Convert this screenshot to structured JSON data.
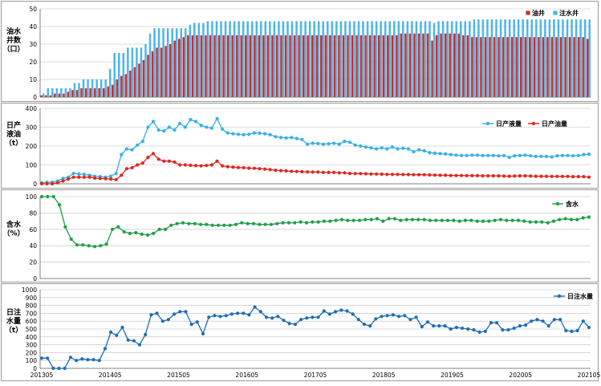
{
  "chart_data": [
    {
      "type": "bar",
      "ylabel": [
        "油水",
        "井数",
        "（口）"
      ],
      "ylim": [
        0,
        50
      ],
      "yticks": [
        "0",
        "10",
        "20",
        "30",
        "40",
        "50"
      ],
      "legend_position": "top-right",
      "colors": {
        "oil": "#d42a2a",
        "water": "#4fb5e4"
      },
      "series": [
        {
          "name": "油井",
          "values": [
            1,
            1,
            1,
            2,
            2,
            2,
            3,
            4,
            4,
            5,
            5,
            5,
            5,
            5,
            5,
            6,
            7,
            10,
            12,
            13,
            15,
            17,
            19,
            21,
            24,
            26,
            28,
            28,
            29,
            30,
            32,
            33,
            34,
            35,
            35,
            35,
            35,
            35,
            35,
            35,
            35,
            35,
            35,
            35,
            35,
            35,
            35,
            35,
            35,
            35,
            35,
            35,
            35,
            35,
            35,
            35,
            35,
            35,
            35,
            35,
            35,
            35,
            35,
            35,
            35,
            35,
            35,
            35,
            35,
            35,
            35,
            35,
            35,
            35,
            35,
            35,
            35,
            35,
            35,
            35,
            35,
            36,
            36,
            36,
            36,
            36,
            36,
            36,
            32,
            35,
            36,
            36,
            36,
            36,
            36,
            35,
            35,
            34,
            34,
            34,
            34,
            34,
            34,
            34,
            34,
            34,
            34,
            34,
            34,
            34,
            34,
            34,
            34,
            34,
            34,
            34,
            34,
            34,
            34,
            34,
            34,
            34,
            34,
            33
          ]
        },
        {
          "name": "注水井",
          "values": [
            2,
            5,
            5,
            5,
            5,
            5,
            5,
            8,
            8,
            10,
            10,
            10,
            10,
            10,
            10,
            16,
            25,
            25,
            25,
            28,
            28,
            28,
            28,
            30,
            36,
            39,
            39,
            39,
            39,
            39,
            39,
            39,
            39,
            41,
            42,
            42,
            42,
            43,
            43,
            43,
            43,
            43,
            43,
            43,
            43,
            43,
            43,
            43,
            43,
            43,
            43,
            43,
            43,
            43,
            43,
            43,
            43,
            43,
            43,
            43,
            43,
            43,
            43,
            43,
            43,
            43,
            43,
            43,
            43,
            43,
            43,
            43,
            43,
            43,
            43,
            43,
            43,
            43,
            43,
            43,
            43,
            43,
            43,
            43,
            43,
            43,
            43,
            43,
            42,
            43,
            43,
            43,
            43,
            43,
            43,
            43,
            43,
            44,
            44,
            44,
            44,
            44,
            44,
            44,
            44,
            44,
            44,
            44,
            44,
            44,
            44,
            44,
            44,
            44,
            44,
            44,
            44,
            44,
            44,
            44,
            44,
            44,
            44,
            44
          ]
        }
      ]
    },
    {
      "type": "line",
      "ylabel": [
        "日产",
        "液油",
        "（t）"
      ],
      "ylim": [
        0,
        400
      ],
      "yticks": [
        "0",
        "100",
        "200",
        "300",
        "400"
      ],
      "legend_position": "top-right",
      "series": [
        {
          "name": "日产液量",
          "color": "#35b0e4",
          "values": [
            5,
            8,
            8,
            15,
            28,
            35,
            55,
            52,
            50,
            45,
            40,
            38,
            35,
            40,
            55,
            155,
            185,
            180,
            205,
            225,
            300,
            330,
            285,
            280,
            300,
            285,
            320,
            300,
            340,
            330,
            310,
            300,
            295,
            345,
            290,
            270,
            265,
            262,
            260,
            262,
            270,
            268,
            265,
            260,
            250,
            245,
            243,
            245,
            240,
            235,
            210,
            215,
            213,
            210,
            212,
            215,
            210,
            225,
            220,
            205,
            200,
            195,
            190,
            185,
            190,
            185,
            195,
            185,
            188,
            185,
            170,
            180,
            175,
            165,
            162,
            160,
            158,
            155,
            152,
            150,
            150,
            152,
            152,
            150,
            150,
            150,
            148,
            150,
            140,
            148,
            150,
            152,
            148,
            145,
            145,
            145,
            142,
            148,
            150,
            150,
            148,
            150,
            155,
            157
          ]
        },
        {
          "name": "日产油量",
          "color": "#e0261e",
          "values": [
            0,
            0,
            0,
            5,
            15,
            25,
            35,
            35,
            35,
            35,
            30,
            28,
            27,
            25,
            22,
            45,
            80,
            85,
            100,
            110,
            140,
            160,
            130,
            120,
            120,
            115,
            100,
            100,
            98,
            96,
            95,
            97,
            100,
            120,
            95,
            90,
            88,
            86,
            85,
            83,
            82,
            80,
            78,
            75,
            72,
            70,
            68,
            66,
            65,
            64,
            63,
            62,
            62,
            60,
            60,
            60,
            58,
            58,
            55,
            54,
            54,
            53,
            52,
            52,
            51,
            50,
            50,
            50,
            49,
            49,
            48,
            48,
            48,
            47,
            46,
            45,
            45,
            44,
            44,
            44,
            43,
            43,
            43,
            42,
            42,
            42,
            42,
            41,
            40,
            41,
            42,
            42,
            41,
            40,
            40,
            40,
            39,
            39,
            39,
            39,
            38,
            38,
            38,
            35
          ]
        }
      ]
    },
    {
      "type": "line",
      "ylabel": [
        "含水",
        "（%）"
      ],
      "ylim": [
        0,
        100
      ],
      "yticks": [
        "0",
        "20",
        "40",
        "60",
        "80",
        "100"
      ],
      "legend_position": "top-right",
      "series": [
        {
          "name": "含水",
          "color": "#1f9e46",
          "values": [
            100,
            100,
            100,
            90,
            63,
            48,
            41,
            41,
            40,
            39,
            40,
            42,
            60,
            63,
            57,
            55,
            56,
            54,
            53,
            55,
            60,
            60,
            65,
            67,
            68,
            67,
            67,
            66,
            66,
            65,
            65,
            65,
            65,
            66,
            68,
            67,
            67,
            66,
            66,
            66,
            67,
            68,
            68,
            68,
            69,
            68,
            69,
            69,
            70,
            70,
            71,
            72,
            71,
            71,
            71,
            72,
            72,
            73,
            70,
            73,
            73,
            71,
            72,
            72,
            72,
            72,
            71,
            71,
            71,
            71,
            71,
            70,
            71,
            71,
            70,
            70,
            70,
            71,
            72,
            71,
            71,
            71,
            70,
            69,
            69,
            69,
            68,
            70,
            72,
            73,
            72,
            72,
            74,
            75
          ]
        }
      ]
    },
    {
      "type": "line",
      "ylabel": [
        "日注",
        "水量",
        "（t）"
      ],
      "ylim": [
        0,
        1000
      ],
      "yticks": [
        "0",
        "100",
        "200",
        "300",
        "400",
        "500",
        "600",
        "700",
        "800",
        "900",
        "1000"
      ],
      "legend_position": "top-right",
      "xticks": [
        "201305",
        "201405",
        "201505",
        "201605",
        "201705",
        "201805",
        "201905",
        "202005",
        "202105"
      ],
      "series": [
        {
          "name": "日注水量",
          "color": "#1f6db5",
          "values": [
            130,
            130,
            0,
            0,
            0,
            140,
            100,
            120,
            110,
            110,
            100,
            250,
            460,
            420,
            520,
            360,
            350,
            300,
            430,
            680,
            700,
            600,
            620,
            690,
            720,
            720,
            560,
            590,
            440,
            650,
            670,
            660,
            670,
            690,
            700,
            700,
            680,
            780,
            720,
            650,
            640,
            660,
            610,
            570,
            560,
            620,
            640,
            650,
            650,
            730,
            690,
            720,
            740,
            730,
            690,
            620,
            560,
            540,
            630,
            660,
            670,
            680,
            660,
            670,
            620,
            650,
            530,
            590,
            540,
            540,
            540,
            500,
            520,
            510,
            500,
            490,
            460,
            470,
            580,
            580,
            490,
            490,
            510,
            540,
            550,
            600,
            620,
            600,
            540,
            620,
            620,
            480,
            470,
            480,
            600,
            520
          ]
        }
      ]
    }
  ]
}
